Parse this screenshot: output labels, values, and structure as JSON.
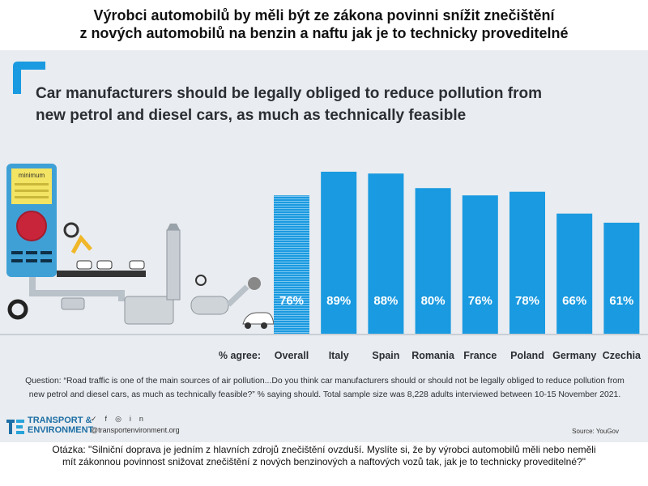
{
  "header": {
    "title_cz_line1": "Výrobci automobilů by měli být ze zákona povinni snížit znečištění",
    "title_cz_line2": "z nových automobilů na benzin a naftu jak je to technicky proveditelné"
  },
  "infographic": {
    "title_line1": "Car manufacturers should be legally obliged to reduce pollution from",
    "title_line2": "new petrol and diesel cars, as much as technically feasible",
    "gauge_label": "minimum",
    "question_line1": "Question: “Road traffic is one of the main sources of air pollution...Do you think car manufacturers should or should not be legally obliged to reduce pollution from",
    "question_line2": "new petrol and diesel cars, as much as technically feasible?” % saying should. Total sample size was 8,228 adults interviewed between 10-15 November 2021.",
    "logo_line1": "TRANSPORT &",
    "logo_line2": "ENVIRONMENT",
    "social_icons": [
      "twitter-icon",
      "facebook-icon",
      "instagram-icon",
      "linkedin-icon"
    ],
    "website": "@transportenvironment.org",
    "source": "Source: YouGov"
  },
  "chart_data": {
    "type": "bar",
    "xlabel": "% agree:",
    "categories": [
      "Overall",
      "Italy",
      "Spain",
      "Romania",
      "France",
      "Poland",
      "Germany",
      "Czechia"
    ],
    "values": [
      76,
      89,
      88,
      80,
      76,
      78,
      66,
      61
    ],
    "value_labels": [
      "76%",
      "89%",
      "88%",
      "80%",
      "76%",
      "78%",
      "66%",
      "61%"
    ],
    "colors": {
      "bar": "#1a9ae0",
      "overall_bar": "#1a9ae0",
      "value_text": "#ffffff",
      "label_text": "#2b2f33"
    },
    "overall_pattern": "horizontal-stripes",
    "grid": false,
    "legend": "none"
  },
  "footer": {
    "question_cz_line1": "Otázka: \"Silniční doprava je jedním z hlavních zdrojů znečištění ovzduší. Myslíte si, že by výrobci automobilů měli nebo neměli",
    "question_cz_line2": "mít zákonnou povinnost snižovat znečištění z nových benzinových a naftových vozů tak, jak je to technicky proveditelné?\""
  }
}
